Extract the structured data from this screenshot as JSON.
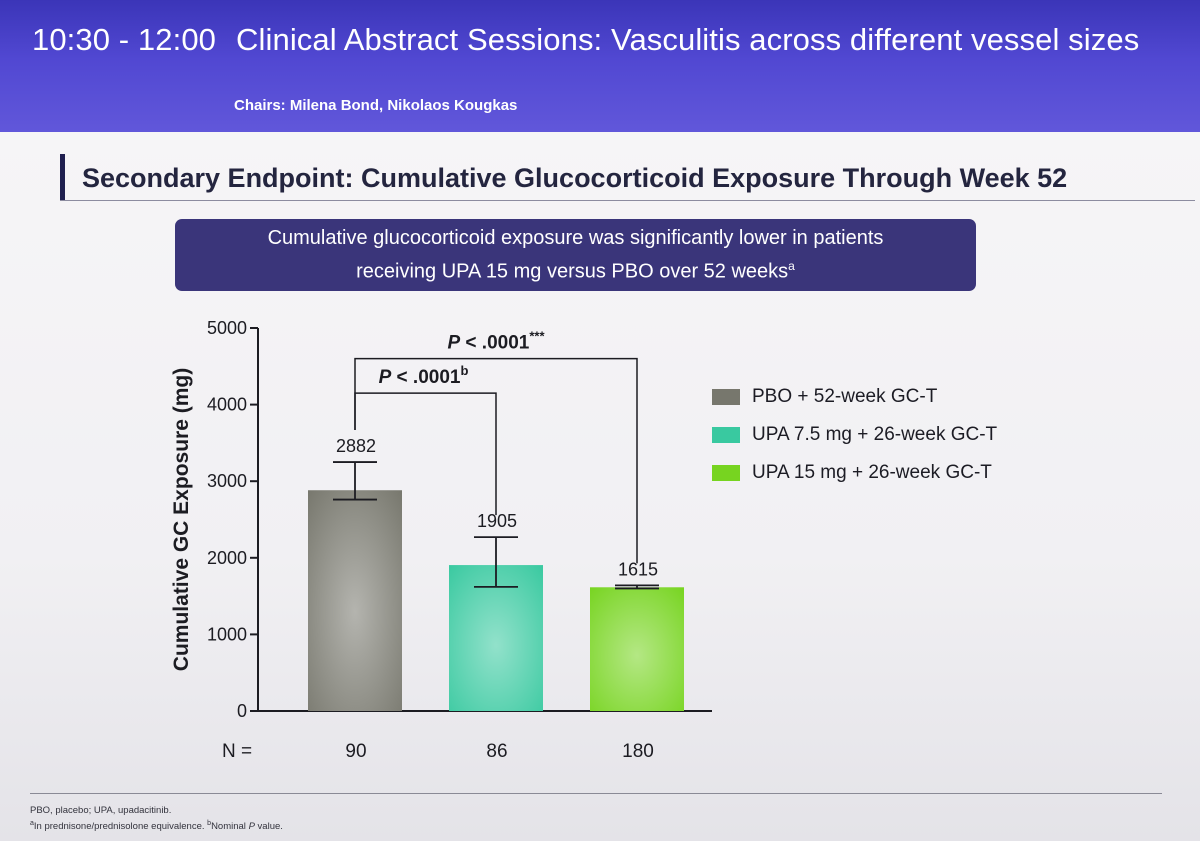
{
  "session": {
    "time": "10:30 - 12:00",
    "title": "Clinical Abstract Sessions: Vasculitis across different vessel sizes",
    "chairs": "Chairs: Milena Bond, Nikolaos Kougkas"
  },
  "slide": {
    "title": "Secondary Endpoint: Cumulative Glucocorticoid Exposure Through Week 52",
    "callout": {
      "line1": "Cumulative glucocorticoid exposure was significantly lower in patients",
      "line2": "receiving UPA 15 mg versus PBO over 52 weeks",
      "superscript": "a"
    },
    "footnotes": {
      "abbreviations": "PBO, placebo; UPA, upadacitinib.",
      "note_a_marker": "a",
      "note_a": "In prednisone/prednisolone equivalence. ",
      "note_b_marker": "b",
      "note_b_prefix": "Nominal ",
      "note_b_italic": "P",
      "note_b_suffix": " value."
    }
  },
  "chart_data": {
    "type": "bar",
    "title": "Secondary Endpoint: Cumulative Glucocorticoid Exposure Through Week 52",
    "ylabel": "Cumulative GC Exposure (mg)",
    "xlabel": "",
    "ylim": [
      0,
      5000
    ],
    "yticks": [
      0,
      1000,
      2000,
      3000,
      4000,
      5000
    ],
    "n_label": "N =",
    "bars": [
      {
        "name": "PBO + 52-week GC-T",
        "value": 2882,
        "label": "2882",
        "error_upper": 3250,
        "error_lower": 2760,
        "n": "90",
        "color": "#77776d"
      },
      {
        "name": "UPA 7.5 mg + 26-week GC-T",
        "value": 1905,
        "label": "1905",
        "error_upper": 2270,
        "error_lower": 1620,
        "n": "86",
        "color": "#39c9a0"
      },
      {
        "name": "UPA 15 mg + 26-week GC-T",
        "value": 1615,
        "label": "1615",
        "error_upper": 1640,
        "error_lower": 1600,
        "n": "180",
        "color": "#77d420"
      }
    ],
    "comparisons": [
      {
        "from": 0,
        "to": 1,
        "level": 4150,
        "p_prefix": "P",
        "p_text": " < .0001",
        "p_sup": "b"
      },
      {
        "from": 0,
        "to": 2,
        "level": 4600,
        "p_prefix": "P",
        "p_text": " < .0001",
        "p_sup": "***"
      }
    ],
    "legend": [
      {
        "label": "PBO + 52-week GC-T",
        "color": "#77776d"
      },
      {
        "label": "UPA 7.5 mg + 26-week GC-T",
        "color": "#39c9a0"
      },
      {
        "label": "UPA 15 mg + 26-week GC-T",
        "color": "#77d420"
      }
    ]
  }
}
